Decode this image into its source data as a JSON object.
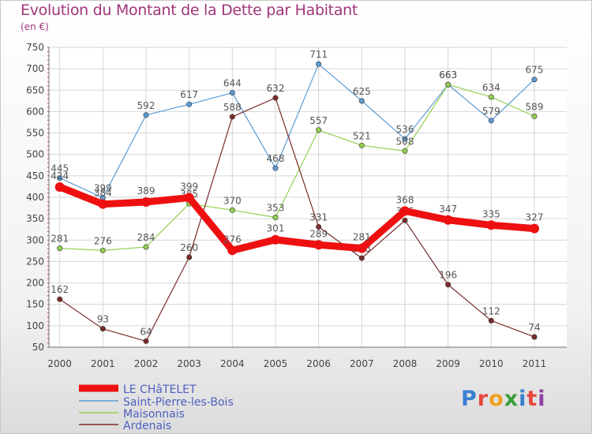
{
  "title": "Evolution du Montant de la Dette par Habitant",
  "subtitle": "(en €)",
  "brand": {
    "text": "Proxiti",
    "colors": [
      "#3a7fd0",
      "#e8473c",
      "#f0a020",
      "#3a9c3a",
      "#3a7fd0",
      "#e8473c",
      "#9040a0"
    ]
  },
  "chart_data": {
    "type": "line",
    "x": [
      "2000",
      "2001",
      "2002",
      "2003",
      "2004",
      "2005",
      "2006",
      "2007",
      "2008",
      "2009",
      "2010",
      "2011"
    ],
    "ylim": [
      50,
      750
    ],
    "yticks": [
      50,
      100,
      150,
      200,
      250,
      300,
      350,
      400,
      450,
      500,
      550,
      600,
      650,
      700,
      750
    ],
    "grid": true,
    "legend_position": "bottom-left",
    "series": [
      {
        "name": "LE CHâTELET",
        "color": "#ee1010",
        "values": [
          424,
          384,
          389,
          399,
          276,
          301,
          289,
          281,
          368,
          347,
          335,
          327
        ]
      },
      {
        "name": "Saint-Pierre-les-Bois",
        "color": "#5b9bd5",
        "values": [
          445,
          399,
          592,
          617,
          644,
          468,
          711,
          625,
          536,
          663,
          579,
          675
        ]
      },
      {
        "name": "Maisonnais",
        "color": "#92d050",
        "values": [
          281,
          276,
          284,
          385,
          370,
          353,
          557,
          521,
          508,
          663,
          634,
          589
        ]
      },
      {
        "name": "Ardenais",
        "color": "#7b2b2b",
        "values": [
          162,
          93,
          64,
          260,
          588,
          632,
          331,
          258,
          346,
          196,
          112,
          74
        ]
      }
    ]
  }
}
